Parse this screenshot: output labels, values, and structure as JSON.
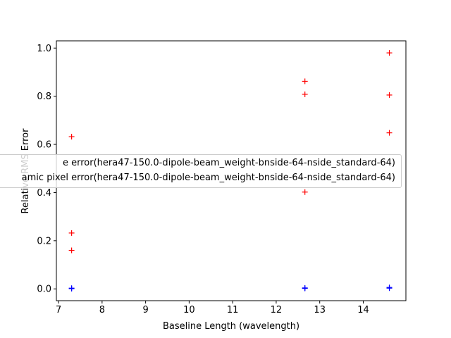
{
  "chart_data": {
    "type": "scatter",
    "title": "",
    "xlabel": "Baseline Length (wavelength)",
    "ylabel": "Relative RMS Error",
    "xlim": [
      6.95,
      14.98
    ],
    "ylim": [
      -0.049,
      1.03
    ],
    "xticks": [
      7,
      8,
      9,
      10,
      11,
      12,
      13,
      14
    ],
    "yticks": [
      0.0,
      0.2,
      0.4,
      0.6,
      0.8,
      1.0
    ],
    "grid": false,
    "legend_placement": "center-left",
    "series": [
      {
        "name": "e error(hera47-150.0-dipole-beam_weight-bnside-64-nside_standard-64)",
        "color": "#ff0000",
        "marker": "+",
        "x": [
          7.3,
          7.3,
          7.3,
          12.66,
          12.66,
          12.66,
          14.6,
          14.6,
          14.6
        ],
        "y": [
          0.632,
          0.232,
          0.16,
          0.862,
          0.808,
          0.402,
          0.98,
          0.805,
          0.648
        ]
      },
      {
        "name": "amic pixel error(hera47-150.0-dipole-beam_weight-bnside-64-nside_standard-64)",
        "color": "#0000ff",
        "marker": "+",
        "x": [
          7.3,
          7.3,
          12.66,
          12.66,
          14.6,
          14.6
        ],
        "y": [
          0.003,
          0.001,
          0.004,
          0.002,
          0.006,
          0.003
        ]
      }
    ]
  }
}
